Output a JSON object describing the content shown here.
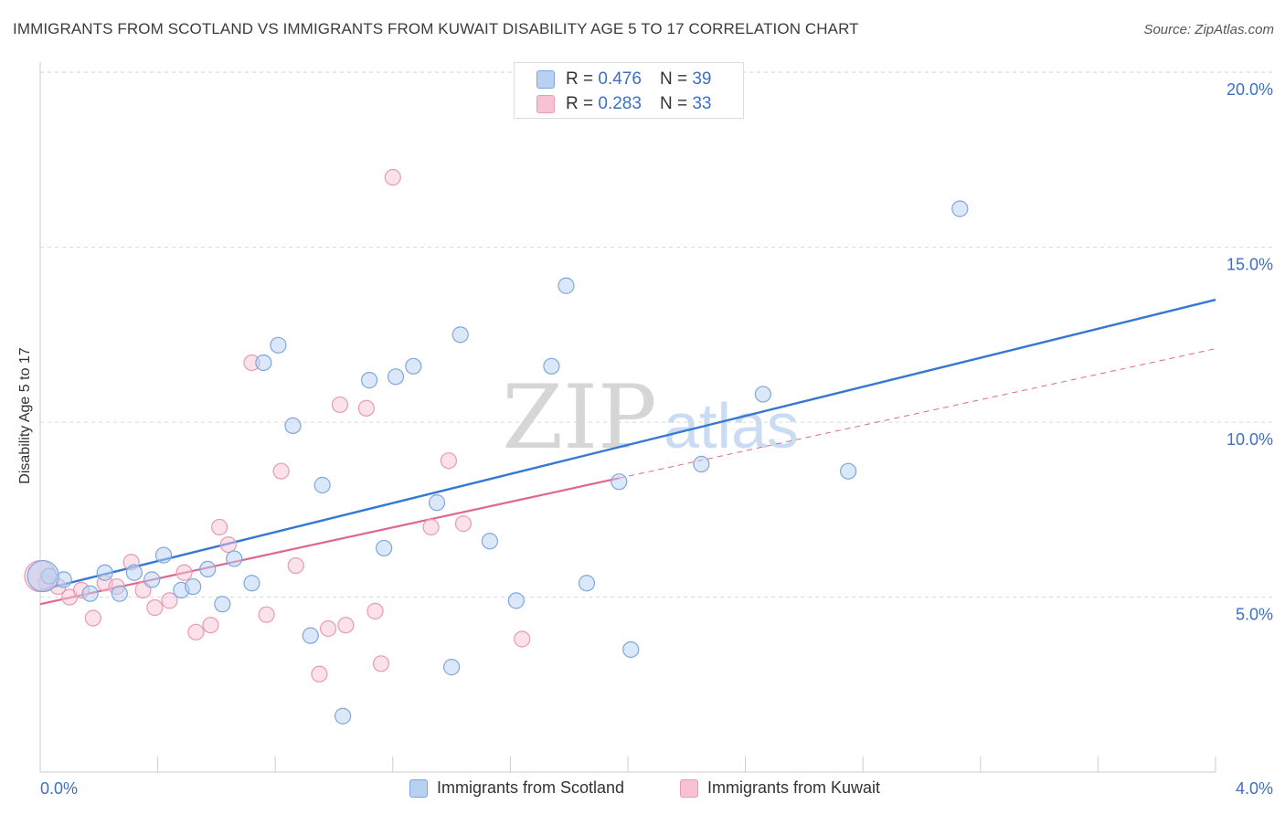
{
  "header": {
    "title": "IMMIGRANTS FROM SCOTLAND VS IMMIGRANTS FROM KUWAIT DISABILITY AGE 5 TO 17 CORRELATION CHART",
    "source": "Source: ZipAtlas.com"
  },
  "watermark": {
    "part1": "ZIP",
    "part2": "atlas"
  },
  "stats_legend": {
    "rows": [
      {
        "r_label": "R = ",
        "r_value": "0.476",
        "n_label": "N = ",
        "n_value": "39"
      },
      {
        "r_label": "R = ",
        "r_value": "0.283",
        "n_label": "N = ",
        "n_value": "33"
      }
    ]
  },
  "colors": {
    "scotland_fill": "#b8d1f3",
    "scotland_stroke": "#7fa7de",
    "scotland_line": "#3577d4",
    "kuwait_fill": "#f7c3d3",
    "kuwait_stroke": "#e99ab4",
    "kuwait_line": "#e0668f",
    "grid": "#d9d9d9",
    "tick_label": "#3d6fc4"
  },
  "chart_data": {
    "type": "scatter",
    "title": "IMMIGRANTS FROM SCOTLAND VS IMMIGRANTS FROM KUWAIT DISABILITY AGE 5 TO 17 CORRELATION CHART",
    "xlabel": "",
    "ylabel": "Disability Age 5 to 17",
    "xlim": [
      0,
      4.0
    ],
    "ylim": [
      0,
      20.5
    ],
    "x_tick_labels": [
      "0.0%",
      "4.0%"
    ],
    "y_ticks": [
      5,
      10,
      15,
      20
    ],
    "y_tick_labels": [
      "5.0%",
      "10.0%",
      "15.0%",
      "20.0%"
    ],
    "grid": true,
    "legend_position": "bottom-center",
    "series": [
      {
        "name": "Immigrants from Scotland",
        "points": [
          [
            0.03,
            5.6
          ],
          [
            0.08,
            5.5
          ],
          [
            0.17,
            5.1
          ],
          [
            0.22,
            5.7
          ],
          [
            0.27,
            5.1
          ],
          [
            0.32,
            5.7
          ],
          [
            0.38,
            5.5
          ],
          [
            0.42,
            6.2
          ],
          [
            0.48,
            5.2
          ],
          [
            0.52,
            5.3
          ],
          [
            0.57,
            5.8
          ],
          [
            0.62,
            4.8
          ],
          [
            0.66,
            6.1
          ],
          [
            0.72,
            5.4
          ],
          [
            0.76,
            11.7
          ],
          [
            0.81,
            12.2
          ],
          [
            0.86,
            9.9
          ],
          [
            0.92,
            3.9
          ],
          [
            0.96,
            8.2
          ],
          [
            1.03,
            1.6
          ],
          [
            1.12,
            11.2
          ],
          [
            1.17,
            6.4
          ],
          [
            1.21,
            11.3
          ],
          [
            1.27,
            11.6
          ],
          [
            1.35,
            7.7
          ],
          [
            1.4,
            3.0
          ],
          [
            1.43,
            12.5
          ],
          [
            1.53,
            6.6
          ],
          [
            1.62,
            4.9
          ],
          [
            1.74,
            11.6
          ],
          [
            1.79,
            13.9
          ],
          [
            1.86,
            5.4
          ],
          [
            1.97,
            8.3
          ],
          [
            2.01,
            3.5
          ],
          [
            2.25,
            8.8
          ],
          [
            2.46,
            10.8
          ],
          [
            2.75,
            8.6
          ],
          [
            3.13,
            16.1
          ],
          [
            0.01,
            5.6
          ]
        ],
        "trend": {
          "x": [
            0.0,
            4.0
          ],
          "y": [
            5.2,
            13.5
          ]
        }
      },
      {
        "name": "Immigrants from Kuwait",
        "points": [
          [
            0.02,
            5.4
          ],
          [
            0.06,
            5.3
          ],
          [
            0.1,
            5.0
          ],
          [
            0.14,
            5.2
          ],
          [
            0.18,
            4.4
          ],
          [
            0.22,
            5.4
          ],
          [
            0.26,
            5.3
          ],
          [
            0.31,
            6.0
          ],
          [
            0.35,
            5.2
          ],
          [
            0.39,
            4.7
          ],
          [
            0.44,
            4.9
          ],
          [
            0.49,
            5.7
          ],
          [
            0.53,
            4.0
          ],
          [
            0.58,
            4.2
          ],
          [
            0.61,
            7.0
          ],
          [
            0.64,
            6.5
          ],
          [
            0.72,
            11.7
          ],
          [
            0.77,
            4.5
          ],
          [
            0.82,
            8.6
          ],
          [
            0.87,
            5.9
          ],
          [
            0.95,
            2.8
          ],
          [
            0.98,
            4.1
          ],
          [
            1.02,
            10.5
          ],
          [
            1.04,
            4.2
          ],
          [
            1.11,
            10.4
          ],
          [
            1.14,
            4.6
          ],
          [
            1.16,
            3.1
          ],
          [
            1.2,
            17.0
          ],
          [
            1.33,
            7.0
          ],
          [
            1.39,
            8.9
          ],
          [
            1.44,
            7.1
          ],
          [
            1.64,
            3.8
          ],
          [
            0.0,
            5.6
          ]
        ],
        "trend_solid": {
          "x": [
            0.0,
            1.97
          ],
          "y": [
            4.8,
            8.4
          ]
        },
        "trend_dashed": {
          "x": [
            1.97,
            4.0
          ],
          "y": [
            8.4,
            12.1
          ]
        }
      }
    ]
  },
  "bottom_legend": {
    "scotland_label": "Immigrants from Scotland",
    "kuwait_label": "Immigrants from Kuwait"
  }
}
